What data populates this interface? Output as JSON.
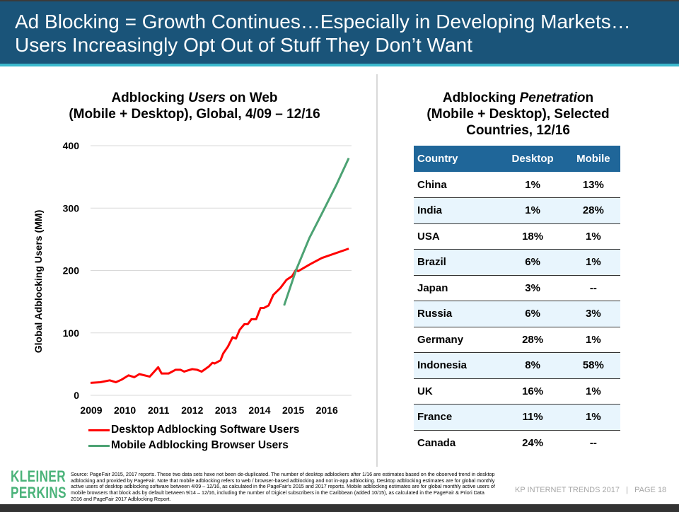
{
  "header": {
    "line1": "Ad Blocking = Growth Continues…Especially in Developing Markets…",
    "line2": "Users Increasingly Opt Out of Stuff They Don’t Want"
  },
  "left_title": {
    "part1": "Adblocking ",
    "part2_italic": "Users",
    "part3": " on Web",
    "line2": "(Mobile + Desktop), Global, 4/09 – 12/16"
  },
  "right_title": {
    "part1": "Adblocking ",
    "part2_italic": "Penetratio",
    "part3": "n",
    "line2": "(Mobile + Desktop), Selected",
    "line3": "Countries, 12/16"
  },
  "chart_data": {
    "type": "line",
    "title": "Adblocking Users on Web (Mobile + Desktop), Global, 4/09 – 12/16",
    "xlabel": "",
    "ylabel": "Global Adblocking Users (MM)",
    "ylim": [
      0,
      400
    ],
    "xlim": [
      2009,
      2016.75
    ],
    "yticks": [
      "0",
      "100",
      "200",
      "300",
      "400"
    ],
    "xticks": [
      "2009",
      "2010",
      "2011",
      "2012",
      "2013",
      "2014",
      "2015",
      "2016"
    ],
    "grid": true,
    "legend_position": "bottom",
    "series": [
      {
        "name": "Desktop Adblocking Software Users",
        "color": "#ff0000",
        "x": [
          2009.0,
          2009.29,
          2009.57,
          2009.75,
          2009.92,
          2010.13,
          2010.3,
          2010.45,
          2010.76,
          2011.01,
          2011.11,
          2011.32,
          2011.53,
          2011.67,
          2011.78,
          2012.02,
          2012.16,
          2012.3,
          2012.51,
          2012.62,
          2012.69,
          2012.86,
          2012.94,
          2013.08,
          2013.22,
          2013.32,
          2013.43,
          2013.57,
          2013.67,
          2013.78,
          2013.92,
          2014.05,
          2014.15,
          2014.29,
          2014.43,
          2014.64,
          2014.82,
          2014.99,
          2015.1,
          2015.17,
          2015.52,
          2015.87,
          2016.67
        ],
        "y": [
          20,
          21,
          24,
          21,
          25,
          32,
          29,
          34,
          30,
          45,
          35,
          35,
          41,
          41,
          38,
          42,
          41,
          38,
          46,
          52,
          51,
          56,
          67,
          78,
          93,
          91,
          105,
          114,
          114,
          122,
          122,
          140,
          140,
          144,
          161,
          172,
          185,
          191,
          201,
          199,
          210,
          220,
          235
        ]
      },
      {
        "name": "Mobile Adblocking Browser Users",
        "color": "#4ca273",
        "x": [
          2014.75,
          2015.1,
          2015.5,
          2015.87,
          2016.3,
          2016.67
        ],
        "y": [
          144,
          200,
          252,
          291,
          337,
          380
        ]
      }
    ]
  },
  "table": {
    "headers": [
      "Country",
      "Desktop",
      "Mobile"
    ],
    "rows": [
      [
        "China",
        "1%",
        "13%"
      ],
      [
        "India",
        "1%",
        "28%"
      ],
      [
        "USA",
        "18%",
        "1%"
      ],
      [
        "Brazil",
        "6%",
        "1%"
      ],
      [
        "Japan",
        "3%",
        "--"
      ],
      [
        "Russia",
        "6%",
        "3%"
      ],
      [
        "Germany",
        "28%",
        "1%"
      ],
      [
        "Indonesia",
        "8%",
        "58%"
      ],
      [
        "UK",
        "16%",
        "1%"
      ],
      [
        "France",
        "11%",
        "1%"
      ],
      [
        "Canada",
        "24%",
        "--"
      ]
    ],
    "header_color": "#1f6699"
  },
  "logo": {
    "line1": "KLEINER",
    "line2": "PERKINS"
  },
  "source": "Source: PageFair 2015, 2017 reports. These two data sets have not been de-duplicated. The number of desktop adblockers after 1/16 are estimates based on the observed trend in desktop adblocking and provided by PageFair. Note that mobile adblocking refers to web / browser-based adblocking and not in-app adblocking. Desktop adblocking estimates are for global monthly active users of desktop adblocking software between 4/09 – 12/16, as calculated in the PageFair's 2015 and 2017 reports.  Mobile adblocking estimates are for global monthly active users of mobile browsers that block ads by default between 9/14 – 12/16, including the number of Digicel subscribers in the Caribbean (added 10/15), as calculated in the PageFair & Priori Data 2016 and PageFair 2017 Adblocking Report.",
  "footer": "KP INTERNET TRENDS 2017   |   PAGE 18"
}
